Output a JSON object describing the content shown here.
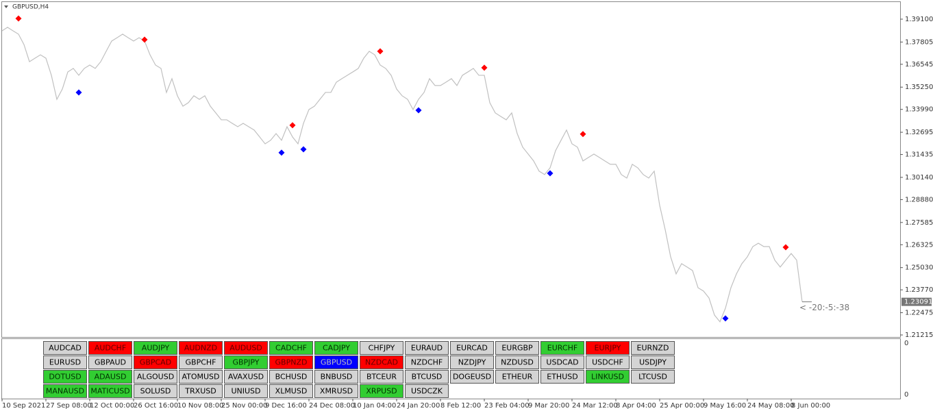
{
  "chart_data": {
    "type": "line",
    "title": "GBPUSD,H4",
    "color": "#c0c0c0",
    "ylim": [
      1.211,
      1.4003
    ],
    "yticks": [
      {
        "value": 1.391,
        "label": "1.39100"
      },
      {
        "value": 1.37805,
        "label": "1.37805"
      },
      {
        "value": 1.36545,
        "label": "1.36545"
      },
      {
        "value": 1.3525,
        "label": "1.35250"
      },
      {
        "value": 1.3399,
        "label": "1.33990"
      },
      {
        "value": 1.32695,
        "label": "1.32695"
      },
      {
        "value": 1.31435,
        "label": "1.31435"
      },
      {
        "value": 1.3014,
        "label": "1.30140"
      },
      {
        "value": 1.2888,
        "label": "1.28880"
      },
      {
        "value": 1.27585,
        "label": "1.27585"
      },
      {
        "value": 1.26325,
        "label": "1.26325"
      },
      {
        "value": 1.2503,
        "label": "1.25030"
      },
      {
        "value": 1.2377,
        "label": "1.23770"
      },
      {
        "value": 1.22475,
        "label": "1.22475"
      },
      {
        "value": 1.21215,
        "label": "1.21215"
      }
    ],
    "categories": [
      "10 Sep 2021",
      null,
      null,
      null,
      null,
      null,
      null,
      null,
      "27 Sep 08:00",
      null,
      null,
      null,
      null,
      null,
      null,
      null,
      "12 Oct 00:00",
      null,
      null,
      null,
      null,
      null,
      null,
      null,
      "26 Oct 16:00",
      null,
      null,
      null,
      null,
      null,
      null,
      null,
      "10 Nov 08:00",
      null,
      null,
      null,
      null,
      null,
      null,
      null,
      "25 Nov 00:00",
      null,
      null,
      null,
      null,
      null,
      null,
      null,
      "9 Dec 16:00",
      null,
      null,
      null,
      null,
      null,
      null,
      null,
      "24 Dec 08:00",
      null,
      null,
      null,
      null,
      null,
      null,
      null,
      "10 Jan 04:00",
      null,
      null,
      null,
      null,
      null,
      null,
      null,
      "24 Jan 20:00",
      null,
      null,
      null,
      null,
      null,
      null,
      null,
      "8 Feb 12:00",
      null,
      null,
      null,
      null,
      null,
      null,
      null,
      "23 Feb 04:00",
      null,
      null,
      null,
      null,
      null,
      null,
      null,
      "9 Mar 20:00",
      null,
      null,
      null,
      null,
      null,
      null,
      null,
      "24 Mar 12:00",
      null,
      null,
      null,
      null,
      null,
      null,
      null,
      "8 Apr 04:00",
      null,
      null,
      null,
      null,
      null,
      null,
      null,
      "25 Apr 00:00",
      null,
      null,
      null,
      null,
      null,
      null,
      null,
      "9 May 16:00",
      null,
      null,
      null,
      null,
      null,
      null,
      null,
      "24 May 08:00",
      null,
      null,
      null,
      null,
      null,
      null,
      null,
      "8 Jun 00:00",
      null,
      null
    ],
    "values": [
      1.3844,
      1.3864,
      1.3844,
      1.3825,
      1.3766,
      1.3669,
      1.3689,
      1.3708,
      1.3689,
      1.3592,
      1.3456,
      1.3514,
      1.3611,
      1.3631,
      1.3592,
      1.3631,
      1.365,
      1.3631,
      1.3669,
      1.3728,
      1.3786,
      1.3805,
      1.3825,
      1.3805,
      1.3786,
      1.3805,
      1.3786,
      1.3708,
      1.365,
      1.3631,
      1.3495,
      1.3573,
      1.3476,
      1.3417,
      1.3437,
      1.3476,
      1.3456,
      1.3476,
      1.3417,
      1.3379,
      1.334,
      1.334,
      1.332,
      1.3301,
      1.332,
      1.3301,
      1.3282,
      1.3243,
      1.3204,
      1.3224,
      1.3262,
      1.3224,
      1.3301,
      1.3243,
      1.3204,
      1.332,
      1.3398,
      1.3417,
      1.3456,
      1.3495,
      1.3495,
      1.3553,
      1.3573,
      1.3592,
      1.3611,
      1.3631,
      1.3689,
      1.3728,
      1.3708,
      1.365,
      1.3631,
      1.3592,
      1.3514,
      1.3476,
      1.3456,
      1.3398,
      1.3456,
      1.3495,
      1.3573,
      1.3534,
      1.3534,
      1.3553,
      1.3573,
      1.3534,
      1.3592,
      1.3611,
      1.3631,
      1.3592,
      1.3592,
      1.3437,
      1.3379,
      1.3359,
      1.334,
      1.3379,
      1.3262,
      1.3185,
      1.3146,
      1.3107,
      1.3049,
      1.303,
      1.3068,
      1.3165,
      1.3224,
      1.3282,
      1.3204,
      1.3185,
      1.3107,
      1.3127,
      1.3146,
      1.3127,
      1.3107,
      1.3088,
      1.3088,
      1.303,
      1.301,
      1.3088,
      1.3068,
      1.303,
      1.301,
      1.3049,
      1.2855,
      1.2719,
      1.2564,
      1.2467,
      1.2525,
      1.2506,
      1.2486,
      1.2389,
      1.237,
      1.2331,
      1.2234,
      1.2196,
      1.2273,
      1.2389,
      1.2467,
      1.2525,
      1.2564,
      1.2622,
      1.2641,
      1.2622,
      1.2622,
      1.2545,
      1.2506,
      1.2545,
      1.2583,
      1.2545,
      1.2309
    ],
    "signals": [
      {
        "color": "#ff0000",
        "x": [
          3,
          26,
          53,
          69,
          88,
          106,
          143
        ],
        "values": [
          1.3914,
          1.3794,
          1.3309,
          1.3728,
          1.3635,
          1.3259,
          1.2618
        ]
      },
      {
        "color": "#0000ff",
        "x": [
          14,
          51,
          55,
          76,
          100,
          132
        ],
        "values": [
          1.3495,
          1.3154,
          1.3173,
          1.3394,
          1.3037,
          1.2215
        ]
      }
    ],
    "current_price": 1.23091,
    "annotation": "< -20:-5:-38"
  },
  "subwindow": {
    "axis_labels": [
      0,
      0
    ]
  },
  "symbol_panel": {
    "rows": [
      [
        {
          "label": "AUDCAD",
          "color": "#d4d4d4"
        },
        {
          "label": "AUDCHF",
          "color": "#ff0000"
        },
        {
          "label": "AUDJPY",
          "color": "#32cd32"
        },
        {
          "label": "AUDNZD",
          "color": "#ff0000"
        },
        {
          "label": "AUDUSD",
          "color": "#ff0000"
        },
        {
          "label": "CADCHF",
          "color": "#32cd32"
        },
        {
          "label": "CADJPY",
          "color": "#32cd32"
        },
        {
          "label": "CHFJPY",
          "color": "#d4d4d4"
        },
        {
          "label": "EURAUD",
          "color": "#d4d4d4"
        },
        {
          "label": "EURCAD",
          "color": "#d4d4d4"
        },
        {
          "label": "EURGBP",
          "color": "#d4d4d4"
        },
        {
          "label": "EURCHF",
          "color": "#32cd32"
        },
        {
          "label": "EURJPY",
          "color": "#ff0000"
        },
        {
          "label": "EURNZD",
          "color": "#d4d4d4"
        }
      ],
      [
        {
          "label": "EURUSD",
          "color": "#d4d4d4"
        },
        {
          "label": "GBPAUD",
          "color": "#d4d4d4"
        },
        {
          "label": "GBPCAD",
          "color": "#ff0000"
        },
        {
          "label": "GBPCHF",
          "color": "#d4d4d4"
        },
        {
          "label": "GBPJPY",
          "color": "#32cd32"
        },
        {
          "label": "GBPNZD",
          "color": "#ff0000"
        },
        {
          "label": "GBPUSD",
          "color": "#0000ff"
        },
        {
          "label": "NZDCAD",
          "color": "#ff0000"
        },
        {
          "label": "NZDCHF",
          "color": "#d4d4d4"
        },
        {
          "label": "NZDJPY",
          "color": "#d4d4d4"
        },
        {
          "label": "NZDUSD",
          "color": "#d4d4d4"
        },
        {
          "label": "USDCAD",
          "color": "#d4d4d4"
        },
        {
          "label": "USDCHF",
          "color": "#d4d4d4"
        },
        {
          "label": "USDJPY",
          "color": "#d4d4d4"
        }
      ],
      [
        {
          "label": "DOTUSD",
          "color": "#32cd32"
        },
        {
          "label": "ADAUSD",
          "color": "#32cd32"
        },
        {
          "label": "ALGOUSD",
          "color": "#d4d4d4"
        },
        {
          "label": "ATOMUSD",
          "color": "#d4d4d4"
        },
        {
          "label": "AVAXUSD",
          "color": "#d4d4d4"
        },
        {
          "label": "BCHUSD",
          "color": "#d4d4d4"
        },
        {
          "label": "BNBUSD",
          "color": "#d4d4d4"
        },
        {
          "label": "BTCEUR",
          "color": "#d4d4d4"
        },
        {
          "label": "BTCUSD",
          "color": "#d4d4d4"
        },
        {
          "label": "DOGEUSD",
          "color": "#d4d4d4"
        },
        {
          "label": "ETHEUR",
          "color": "#d4d4d4"
        },
        {
          "label": "ETHUSD",
          "color": "#d4d4d4"
        },
        {
          "label": "LINKUSD",
          "color": "#32cd32"
        },
        {
          "label": "LTCUSD",
          "color": "#d4d4d4"
        }
      ],
      [
        {
          "label": "MANAUSD",
          "color": "#32cd32"
        },
        {
          "label": "MATICUSD",
          "color": "#32cd32"
        },
        {
          "label": "SOLUSD",
          "color": "#d4d4d4"
        },
        {
          "label": "TRXUSD",
          "color": "#d4d4d4"
        },
        {
          "label": "UNIUSD",
          "color": "#d4d4d4"
        },
        {
          "label": "XLMUSD",
          "color": "#d4d4d4"
        },
        {
          "label": "XMRUSD",
          "color": "#d4d4d4"
        },
        {
          "label": "XRPUSD",
          "color": "#32cd32"
        },
        {
          "label": "USDCZK",
          "color": "#d4d4d4"
        }
      ]
    ]
  }
}
